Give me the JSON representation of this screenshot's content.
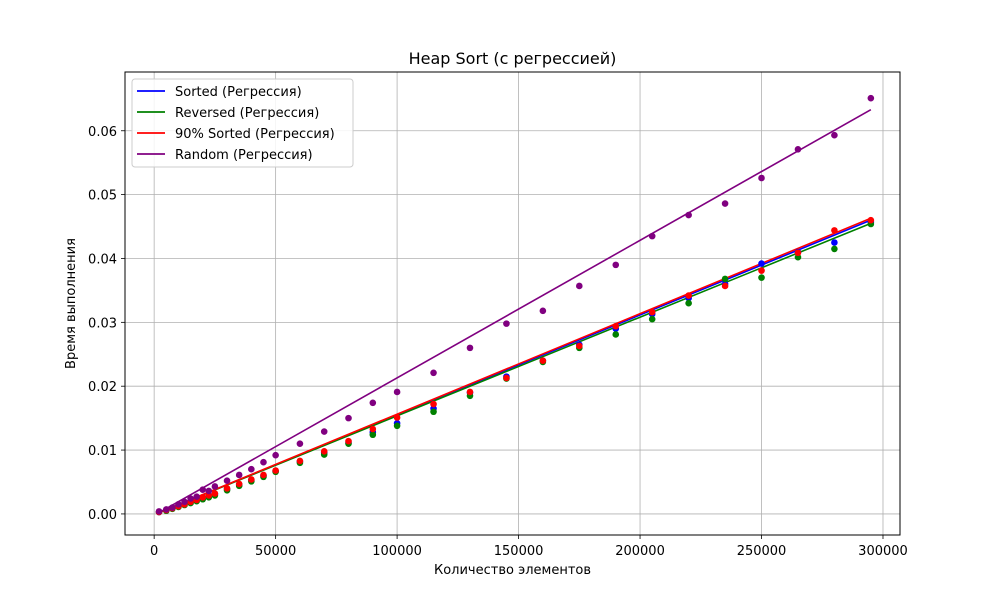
{
  "chart_data": {
    "type": "scatter",
    "title": "Heap Sort (с регрессией)",
    "xlabel": "Количество элементов",
    "ylabel": "Время выполнения",
    "xlim": [
      -12000,
      307000
    ],
    "ylim": [
      -0.0033,
      0.0692
    ],
    "x_ticks": [
      0,
      50000,
      100000,
      150000,
      200000,
      250000,
      300000
    ],
    "x_tick_labels": [
      "0",
      "50000",
      "100000",
      "150000",
      "200000",
      "250000",
      "300000"
    ],
    "y_ticks": [
      0,
      0.01,
      0.02,
      0.03,
      0.04,
      0.05,
      0.06
    ],
    "y_tick_labels": [
      "0.00",
      "0.01",
      "0.02",
      "0.03",
      "0.04",
      "0.05",
      "0.06"
    ],
    "grid": true,
    "legend_position": "top-left",
    "x": [
      2000,
      5000,
      7500,
      10000,
      12500,
      15000,
      17500,
      20000,
      22500,
      25000,
      30000,
      35000,
      40000,
      45000,
      50000,
      60000,
      70000,
      80000,
      90000,
      100000,
      115000,
      130000,
      145000,
      160000,
      175000,
      190000,
      205000,
      220000,
      235000,
      250000,
      265000,
      280000,
      295000
    ],
    "series": [
      {
        "name": "Sorted (Регрессия)",
        "color": "#0000ff",
        "values": [
          0.0003,
          0.0006,
          0.0009,
          0.0012,
          0.0015,
          0.0019,
          0.0022,
          0.0025,
          0.0028,
          0.0031,
          0.0039,
          0.0046,
          0.0053,
          0.006,
          0.0067,
          0.0082,
          0.0096,
          0.0112,
          0.0128,
          0.0142,
          0.0165,
          0.019,
          0.0215,
          0.024,
          0.0265,
          0.029,
          0.0313,
          0.0338,
          0.036,
          0.0392,
          0.041,
          0.0425,
          0.0457
        ],
        "fit": [
          [
            2000,
            0.0002
          ],
          [
            295000,
            0.046
          ]
        ]
      },
      {
        "name": "Reversed (Регрессия)",
        "color": "#008000",
        "values": [
          0.0003,
          0.0005,
          0.0008,
          0.0011,
          0.0014,
          0.0017,
          0.002,
          0.0023,
          0.0026,
          0.0029,
          0.0037,
          0.0044,
          0.0051,
          0.0058,
          0.0066,
          0.008,
          0.0093,
          0.011,
          0.0124,
          0.0138,
          0.016,
          0.0185,
          0.0212,
          0.0238,
          0.026,
          0.0281,
          0.0305,
          0.033,
          0.0368,
          0.037,
          0.0402,
          0.0415,
          0.0454
        ],
        "fit": [
          [
            2000,
            0.0002
          ],
          [
            295000,
            0.0455
          ]
        ]
      },
      {
        "name": "90% Sorted (Регрессия)",
        "color": "#ff0000",
        "values": [
          0.0003,
          0.0006,
          0.0009,
          0.0012,
          0.0015,
          0.0019,
          0.0022,
          0.0026,
          0.0029,
          0.0032,
          0.004,
          0.0047,
          0.0054,
          0.0061,
          0.0068,
          0.0083,
          0.0098,
          0.0114,
          0.0133,
          0.0151,
          0.0172,
          0.0191,
          0.0213,
          0.024,
          0.0263,
          0.0294,
          0.0316,
          0.0342,
          0.0357,
          0.0381,
          0.0409,
          0.0444,
          0.046
        ],
        "fit": [
          [
            2000,
            0.0002
          ],
          [
            295000,
            0.0463
          ]
        ]
      },
      {
        "name": "Random (Регрессия)",
        "color": "#800080",
        "values": [
          0.0004,
          0.0007,
          0.001,
          0.0015,
          0.0019,
          0.0024,
          0.0027,
          0.0038,
          0.0036,
          0.0043,
          0.0052,
          0.0061,
          0.007,
          0.0081,
          0.0092,
          0.011,
          0.0129,
          0.015,
          0.0174,
          0.0191,
          0.0221,
          0.026,
          0.0298,
          0.0318,
          0.0357,
          0.039,
          0.0435,
          0.0468,
          0.0486,
          0.0526,
          0.0571,
          0.0593,
          0.0651
        ],
        "fit": [
          [
            2000,
            0.0002
          ],
          [
            295000,
            0.0633
          ]
        ]
      }
    ]
  }
}
